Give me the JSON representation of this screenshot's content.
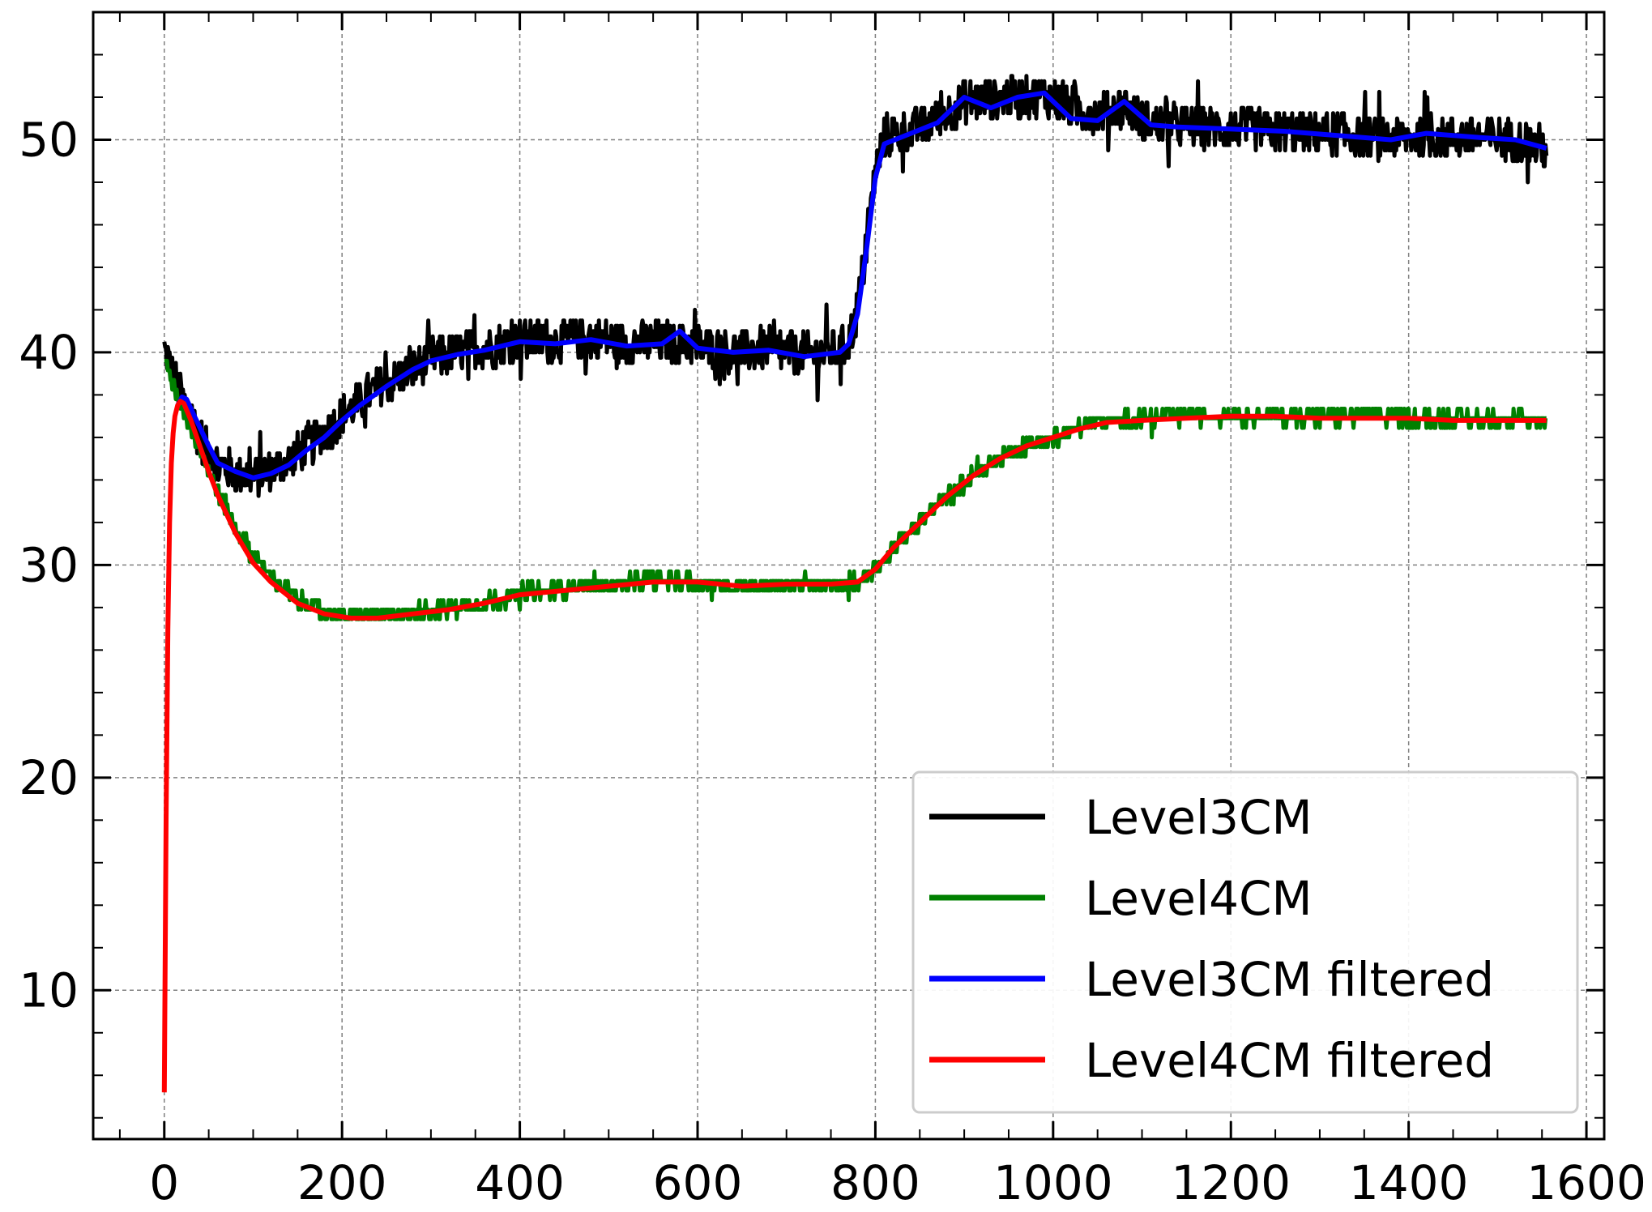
{
  "chart_data": {
    "type": "line",
    "title": "",
    "xlabel": "",
    "ylabel": "",
    "xlim": [
      -80,
      1620
    ],
    "ylim": [
      3,
      56
    ],
    "xticks": [
      0,
      200,
      400,
      600,
      800,
      1000,
      1200,
      1400,
      1600
    ],
    "yticks": [
      10,
      20,
      30,
      40,
      50
    ],
    "xtick_labels": [
      "0",
      "200",
      "400",
      "600",
      "800",
      "1000",
      "1200",
      "1400",
      "1600"
    ],
    "ytick_labels": [
      "10",
      "20",
      "30",
      "40",
      "50"
    ],
    "grid": true,
    "legend_position": "lower-right",
    "series": [
      {
        "name": "Level3CM",
        "color": "#000000",
        "noise": 1.0,
        "x": [
          0,
          10,
          20,
          40,
          60,
          80,
          100,
          120,
          140,
          160,
          180,
          200,
          220,
          250,
          280,
          300,
          330,
          360,
          400,
          440,
          480,
          520,
          560,
          600,
          640,
          680,
          720,
          760,
          770,
          780,
          790,
          800,
          810,
          840,
          870,
          900,
          930,
          960,
          990,
          1020,
          1050,
          1080,
          1110,
          1140,
          1200,
          1260,
          1320,
          1380,
          1420,
          1480,
          1520,
          1555
        ],
        "y": [
          40.2,
          39.0,
          37.8,
          36.0,
          34.8,
          34.3,
          34.2,
          34.4,
          34.9,
          35.6,
          36.2,
          37.0,
          37.7,
          38.6,
          39.2,
          39.7,
          40.0,
          40.2,
          40.6,
          40.5,
          40.7,
          40.4,
          40.5,
          40.3,
          40.0,
          40.2,
          39.9,
          40.1,
          40.5,
          42.0,
          45.0,
          48.5,
          50.2,
          50.4,
          51.0,
          51.8,
          51.9,
          52.0,
          52.1,
          51.5,
          51.2,
          51.6,
          50.8,
          50.7,
          50.5,
          50.4,
          50.3,
          50.0,
          50.2,
          50.1,
          50.0,
          49.6
        ]
      },
      {
        "name": "Level4CM",
        "color": "#008000",
        "noise": 0.35,
        "x": [
          0,
          10,
          20,
          40,
          60,
          80,
          100,
          120,
          150,
          180,
          210,
          240,
          280,
          320,
          360,
          400,
          450,
          500,
          550,
          600,
          650,
          700,
          750,
          780,
          800,
          820,
          850,
          880,
          910,
          940,
          970,
          1000,
          1030,
          1060,
          1100,
          1150,
          1200,
          1250,
          1300,
          1350,
          1400,
          1450,
          1500,
          1555
        ],
        "y": [
          39.5,
          38.5,
          37.5,
          35.5,
          33.5,
          31.8,
          30.4,
          29.5,
          28.4,
          27.8,
          27.6,
          27.6,
          27.8,
          27.9,
          28.2,
          28.7,
          28.9,
          29.1,
          29.3,
          29.2,
          29.0,
          29.1,
          29.1,
          29.2,
          29.8,
          30.8,
          32.0,
          33.2,
          34.2,
          35.0,
          35.6,
          36.0,
          36.5,
          36.8,
          36.9,
          37.0,
          37.0,
          37.0,
          36.9,
          37.0,
          36.9,
          36.9,
          36.9,
          36.8
        ]
      },
      {
        "name": "Level3CM filtered",
        "color": "#0000ff",
        "noise": 0.0,
        "x": [
          15,
          20,
          25,
          35,
          50,
          60,
          80,
          100,
          120,
          140,
          160,
          180,
          200,
          220,
          250,
          280,
          300,
          330,
          360,
          400,
          440,
          480,
          520,
          560,
          580,
          600,
          640,
          680,
          720,
          760,
          770,
          780,
          790,
          800,
          810,
          840,
          870,
          900,
          930,
          960,
          990,
          1020,
          1050,
          1080,
          1110,
          1140,
          1200,
          1260,
          1320,
          1380,
          1420,
          1480,
          1520,
          1555
        ],
        "y": [
          37.5,
          37.9,
          37.8,
          36.9,
          35.6,
          34.8,
          34.4,
          34.1,
          34.3,
          34.7,
          35.4,
          36.0,
          36.8,
          37.5,
          38.4,
          39.2,
          39.6,
          39.9,
          40.1,
          40.5,
          40.4,
          40.6,
          40.3,
          40.4,
          41.0,
          40.2,
          40.0,
          40.1,
          39.8,
          40.0,
          40.4,
          41.8,
          44.8,
          48.2,
          49.8,
          50.3,
          50.8,
          52.0,
          51.5,
          52.0,
          52.2,
          51.0,
          50.9,
          51.8,
          50.7,
          50.6,
          50.5,
          50.4,
          50.2,
          50.0,
          50.3,
          50.1,
          50.0,
          49.6
        ]
      },
      {
        "name": "Level4CM filtered",
        "color": "#ff0000",
        "noise": 0.0,
        "x": [
          0,
          2,
          4,
          6,
          8,
          10,
          12,
          15,
          18,
          22,
          26,
          30,
          40,
          50,
          60,
          80,
          100,
          120,
          150,
          180,
          210,
          240,
          280,
          320,
          360,
          400,
          450,
          500,
          550,
          600,
          650,
          700,
          750,
          780,
          800,
          820,
          850,
          880,
          910,
          940,
          970,
          1000,
          1030,
          1060,
          1100,
          1150,
          1200,
          1250,
          1300,
          1350,
          1400,
          1450,
          1500,
          1555
        ],
        "y": [
          5.2,
          18.0,
          27.0,
          32.0,
          34.8,
          36.2,
          37.0,
          37.5,
          37.7,
          37.6,
          37.2,
          36.8,
          35.6,
          34.4,
          33.3,
          31.5,
          30.1,
          29.2,
          28.2,
          27.7,
          27.5,
          27.5,
          27.7,
          27.9,
          28.2,
          28.6,
          28.8,
          29.0,
          29.2,
          29.2,
          29.0,
          29.1,
          29.1,
          29.2,
          29.8,
          30.8,
          32.0,
          33.2,
          34.2,
          35.0,
          35.6,
          36.0,
          36.4,
          36.7,
          36.8,
          36.9,
          37.0,
          37.0,
          36.9,
          36.9,
          36.9,
          36.8,
          36.8,
          36.8
        ]
      }
    ]
  }
}
